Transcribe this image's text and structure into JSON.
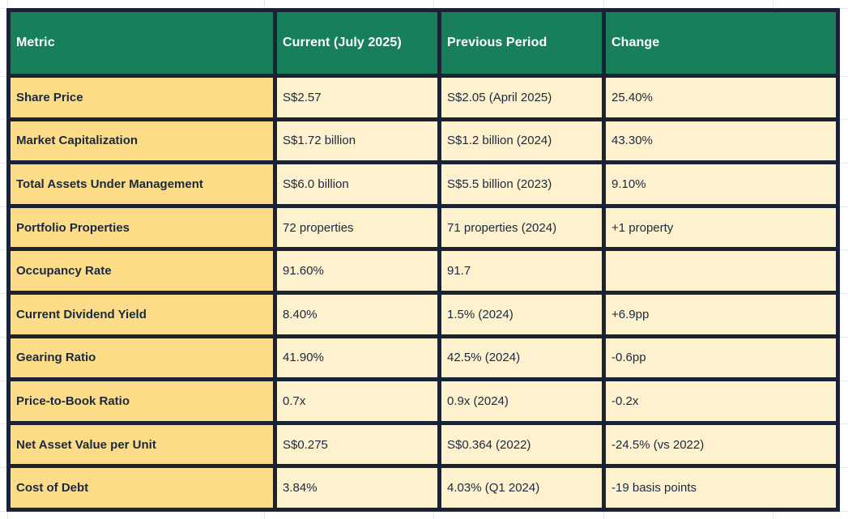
{
  "table": {
    "header": {
      "metric": "Metric",
      "current": "Current (July 2025)",
      "previous": "Previous Period",
      "change": "Change"
    },
    "rows": [
      {
        "metric": "Share Price",
        "current": "S$2.57",
        "previous": "S$2.05 (April 2025)",
        "change": "25.40%"
      },
      {
        "metric": "Market Capitalization",
        "current": "S$1.72 billion",
        "previous": "S$1.2 billion (2024)",
        "change": "43.30%"
      },
      {
        "metric": "Total Assets Under Management",
        "current": "S$6.0 billion",
        "previous": "S$5.5 billion (2023)",
        "change": "9.10%"
      },
      {
        "metric": "Portfolio Properties",
        "current": "72 properties",
        "previous": "71 properties (2024)",
        "change": "+1 property"
      },
      {
        "metric": "Occupancy Rate",
        "current": "91.60%",
        "previous": "91.7",
        "change": ""
      },
      {
        "metric": "Current Dividend Yield",
        "current": "8.40%",
        "previous": "1.5% (2024)",
        "change": "+6.9pp"
      },
      {
        "metric": "Gearing Ratio",
        "current": "41.90%",
        "previous": "42.5% (2024)",
        "change": "-0.6pp"
      },
      {
        "metric": "Price-to-Book Ratio",
        "current": "0.7x",
        "previous": "0.9x (2024)",
        "change": "-0.2x"
      },
      {
        "metric": "Net Asset Value per Unit",
        "current": "S$0.275",
        "previous": "S$0.364 (2022)",
        "change": "-24.5% (vs 2022)"
      },
      {
        "metric": "Cost of Debt",
        "current": "3.84%",
        "previous": "4.03% (Q1 2024)",
        "change": "-19 basis points"
      }
    ],
    "colors": {
      "header_bg": "#17805a",
      "header_text": "#ffffff",
      "metric_bg": "#fcdc86",
      "cell_bg": "#fdf1ce",
      "border": "#1a2233",
      "text": "#1b2940",
      "gridline": "#e6e6e6"
    }
  }
}
